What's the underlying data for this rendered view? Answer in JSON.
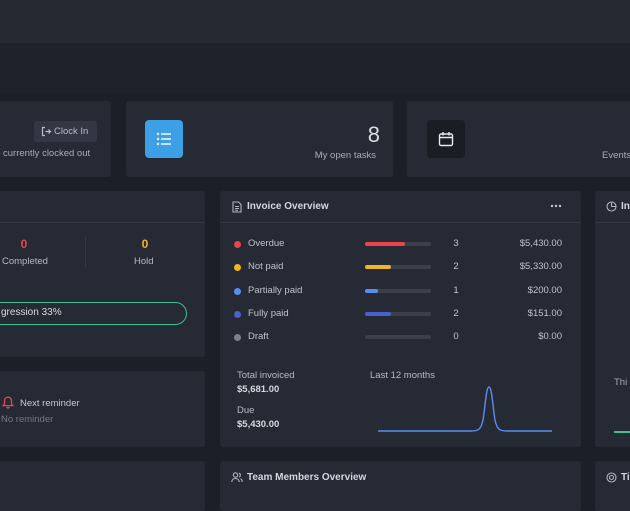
{
  "attendance": {
    "clock_in_label": "Clock In",
    "status_text": "currently clocked out"
  },
  "open_tasks": {
    "count": "8",
    "label": "My open tasks"
  },
  "events": {
    "label": "Events"
  },
  "project_status": {
    "completed_count": "0",
    "completed_label": "Completed",
    "completed_color": "#e8454f",
    "hold_count": "0",
    "hold_label": "Hold",
    "hold_color": "#f0b429",
    "progression_label": "gression 33%",
    "progression_value": 33
  },
  "reminder": {
    "title": "Next reminder",
    "empty_text": "No reminder"
  },
  "invoice_overview": {
    "title": "Invoice Overview",
    "rows": [
      {
        "label": "Overdue",
        "count": "3",
        "amount": "$5,430.00",
        "color": "#e8454f",
        "fill": 0.6
      },
      {
        "label": "Not paid",
        "count": "2",
        "amount": "$5,330.00",
        "color": "#f0b429",
        "fill": 0.4
      },
      {
        "label": "Partially paid",
        "count": "1",
        "amount": "$200.00",
        "color": "#5b8def",
        "fill": 0.2
      },
      {
        "label": "Fully paid",
        "count": "2",
        "amount": "$151.00",
        "color": "#4b5fcf",
        "fill": 0.4
      },
      {
        "label": "Draft",
        "count": "0",
        "amount": "$0.00",
        "color": "#7b808c",
        "fill": 0
      }
    ],
    "total_invoiced_label": "Total invoiced",
    "total_invoiced_value": "$5,681.00",
    "due_label": "Due",
    "due_value": "$5,430.00",
    "chart_label": "Last 12 months"
  },
  "right_partial_title": "In",
  "right_partial_text": "Thi",
  "team_members": {
    "title": "Team Members Overview"
  },
  "right_bottom_partial": "Ti"
}
